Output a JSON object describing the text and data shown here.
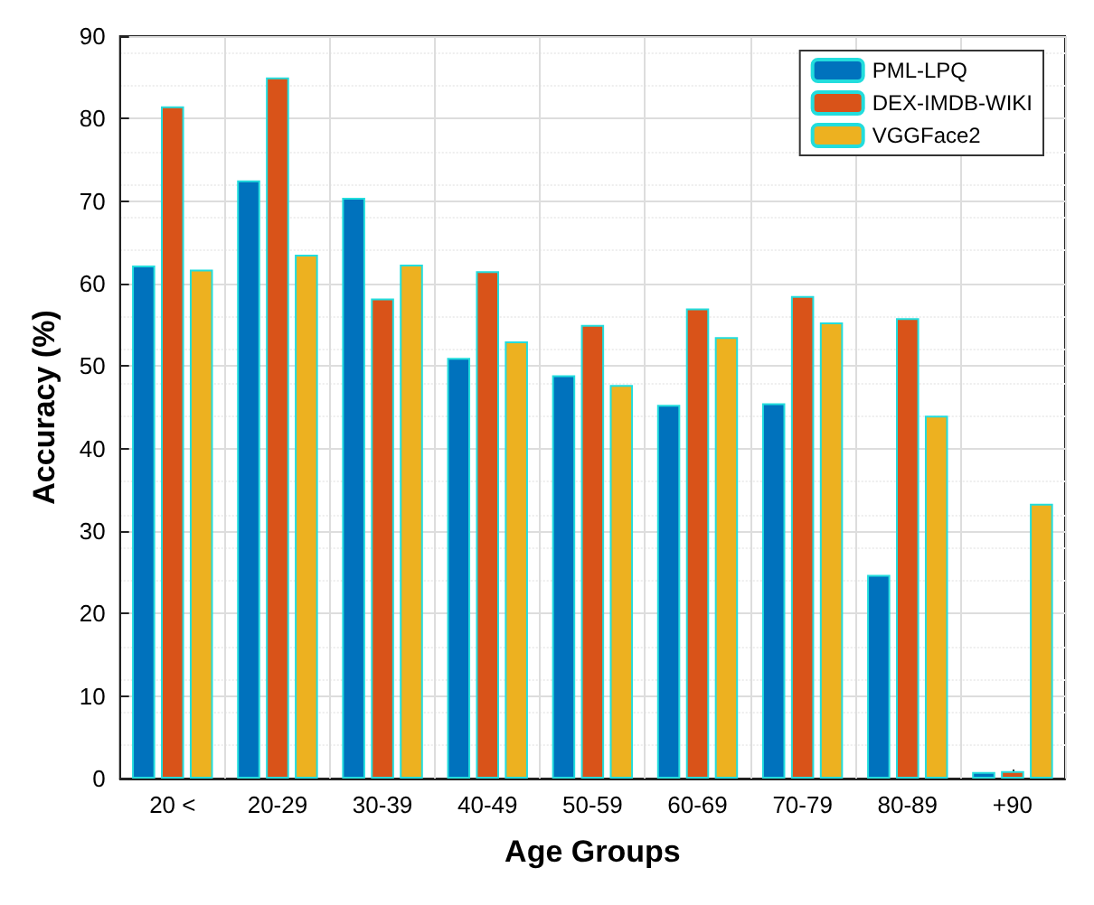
{
  "chart_data": {
    "type": "bar",
    "xlabel": "Age Groups",
    "ylabel": "Accuracy (%)",
    "categories": [
      "20 <",
      "20-29",
      "30-39",
      "40-49",
      "50-59",
      "60-69",
      "70-79",
      "80-89",
      "+90"
    ],
    "series": [
      {
        "name": "PML-LPQ",
        "color": "#0072bd",
        "values": [
          62.2,
          72.5,
          70.4,
          51,
          48.9,
          45.3,
          45.5,
          24.7,
          0.8
        ]
      },
      {
        "name": "DEX-IMDB-WIKI",
        "color": "#d95319",
        "values": [
          81.5,
          85,
          58.2,
          61.5,
          55,
          57,
          58.5,
          55.8,
          0.9
        ]
      },
      {
        "name": "VGGFace2",
        "color": "#edb120",
        "values": [
          61.7,
          63.5,
          62.3,
          53,
          47.7,
          53.5,
          55.3,
          44,
          33.3
        ]
      }
    ],
    "ylim": [
      0,
      90
    ],
    "yticks": [
      0,
      10,
      20,
      30,
      40,
      50,
      60,
      70,
      80,
      90
    ],
    "grid": true,
    "legend": "top right"
  }
}
